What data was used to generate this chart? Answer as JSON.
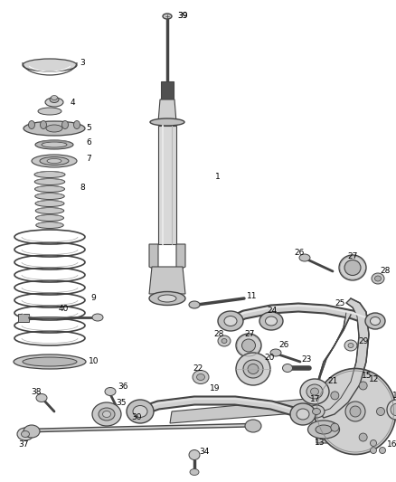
{
  "background_color": "#ffffff",
  "fig_width": 4.38,
  "fig_height": 5.33,
  "dpi": 100,
  "label_fontsize": 6.5,
  "label_color": "#000000",
  "line_color": "#444444",
  "gray_dark": "#444444",
  "gray_mid": "#888888",
  "gray_light": "#cccccc",
  "gray_fill": "#d8d8d8",
  "gray_dark_fill": "#b0b0b0"
}
